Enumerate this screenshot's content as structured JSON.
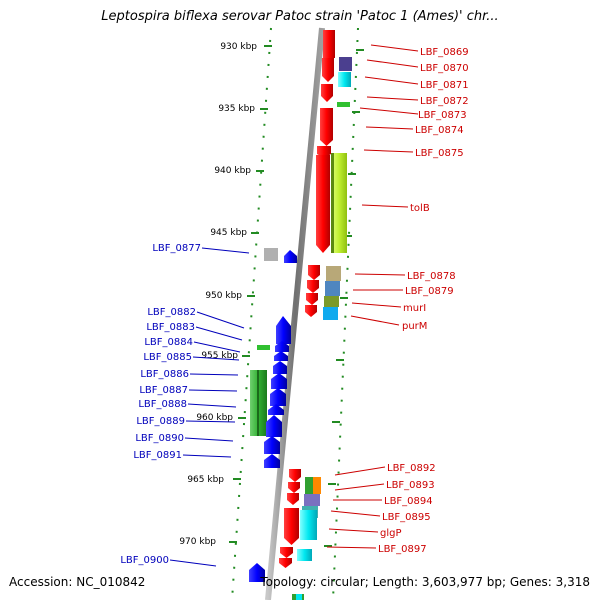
{
  "title": "Leptospira biflexa serovar Patoc strain 'Patoc 1 (Ames)' chr...",
  "footer": {
    "accession": "Accession: NC_010842",
    "info": "Topology: circular; Length: 3,603,977 bp; Genes: 3,318"
  },
  "colors": {
    "forward_label": "#cc0000",
    "reverse_label": "#0000bb",
    "backbone": "#808080",
    "tick": "#228b22"
  },
  "ruler": [
    "930 kbp",
    "935 kbp",
    "940 kbp",
    "945 kbp",
    "950 kbp",
    "955 kbp",
    "960 kbp",
    "965 kbp",
    "970 kbp"
  ],
  "right_labels": [
    "LBF_0869",
    "LBF_0870",
    "LBF_0871",
    "LBF_0872",
    "LBF_0873",
    "LBF_0874",
    "LBF_0875",
    "tolB",
    "LBF_0878",
    "LBF_0879",
    "murI",
    "purM",
    "LBF_0892",
    "LBF_0893",
    "LBF_0894",
    "LBF_0895",
    "glgP",
    "LBF_0897"
  ],
  "left_labels": [
    "LBF_0877",
    "LBF_0882",
    "LBF_0883",
    "LBF_0884",
    "LBF_0885",
    "LBF_0886",
    "LBF_0887",
    "LBF_0888",
    "LBF_0889",
    "LBF_0890",
    "LBF_0891",
    "LBF_0900"
  ]
}
